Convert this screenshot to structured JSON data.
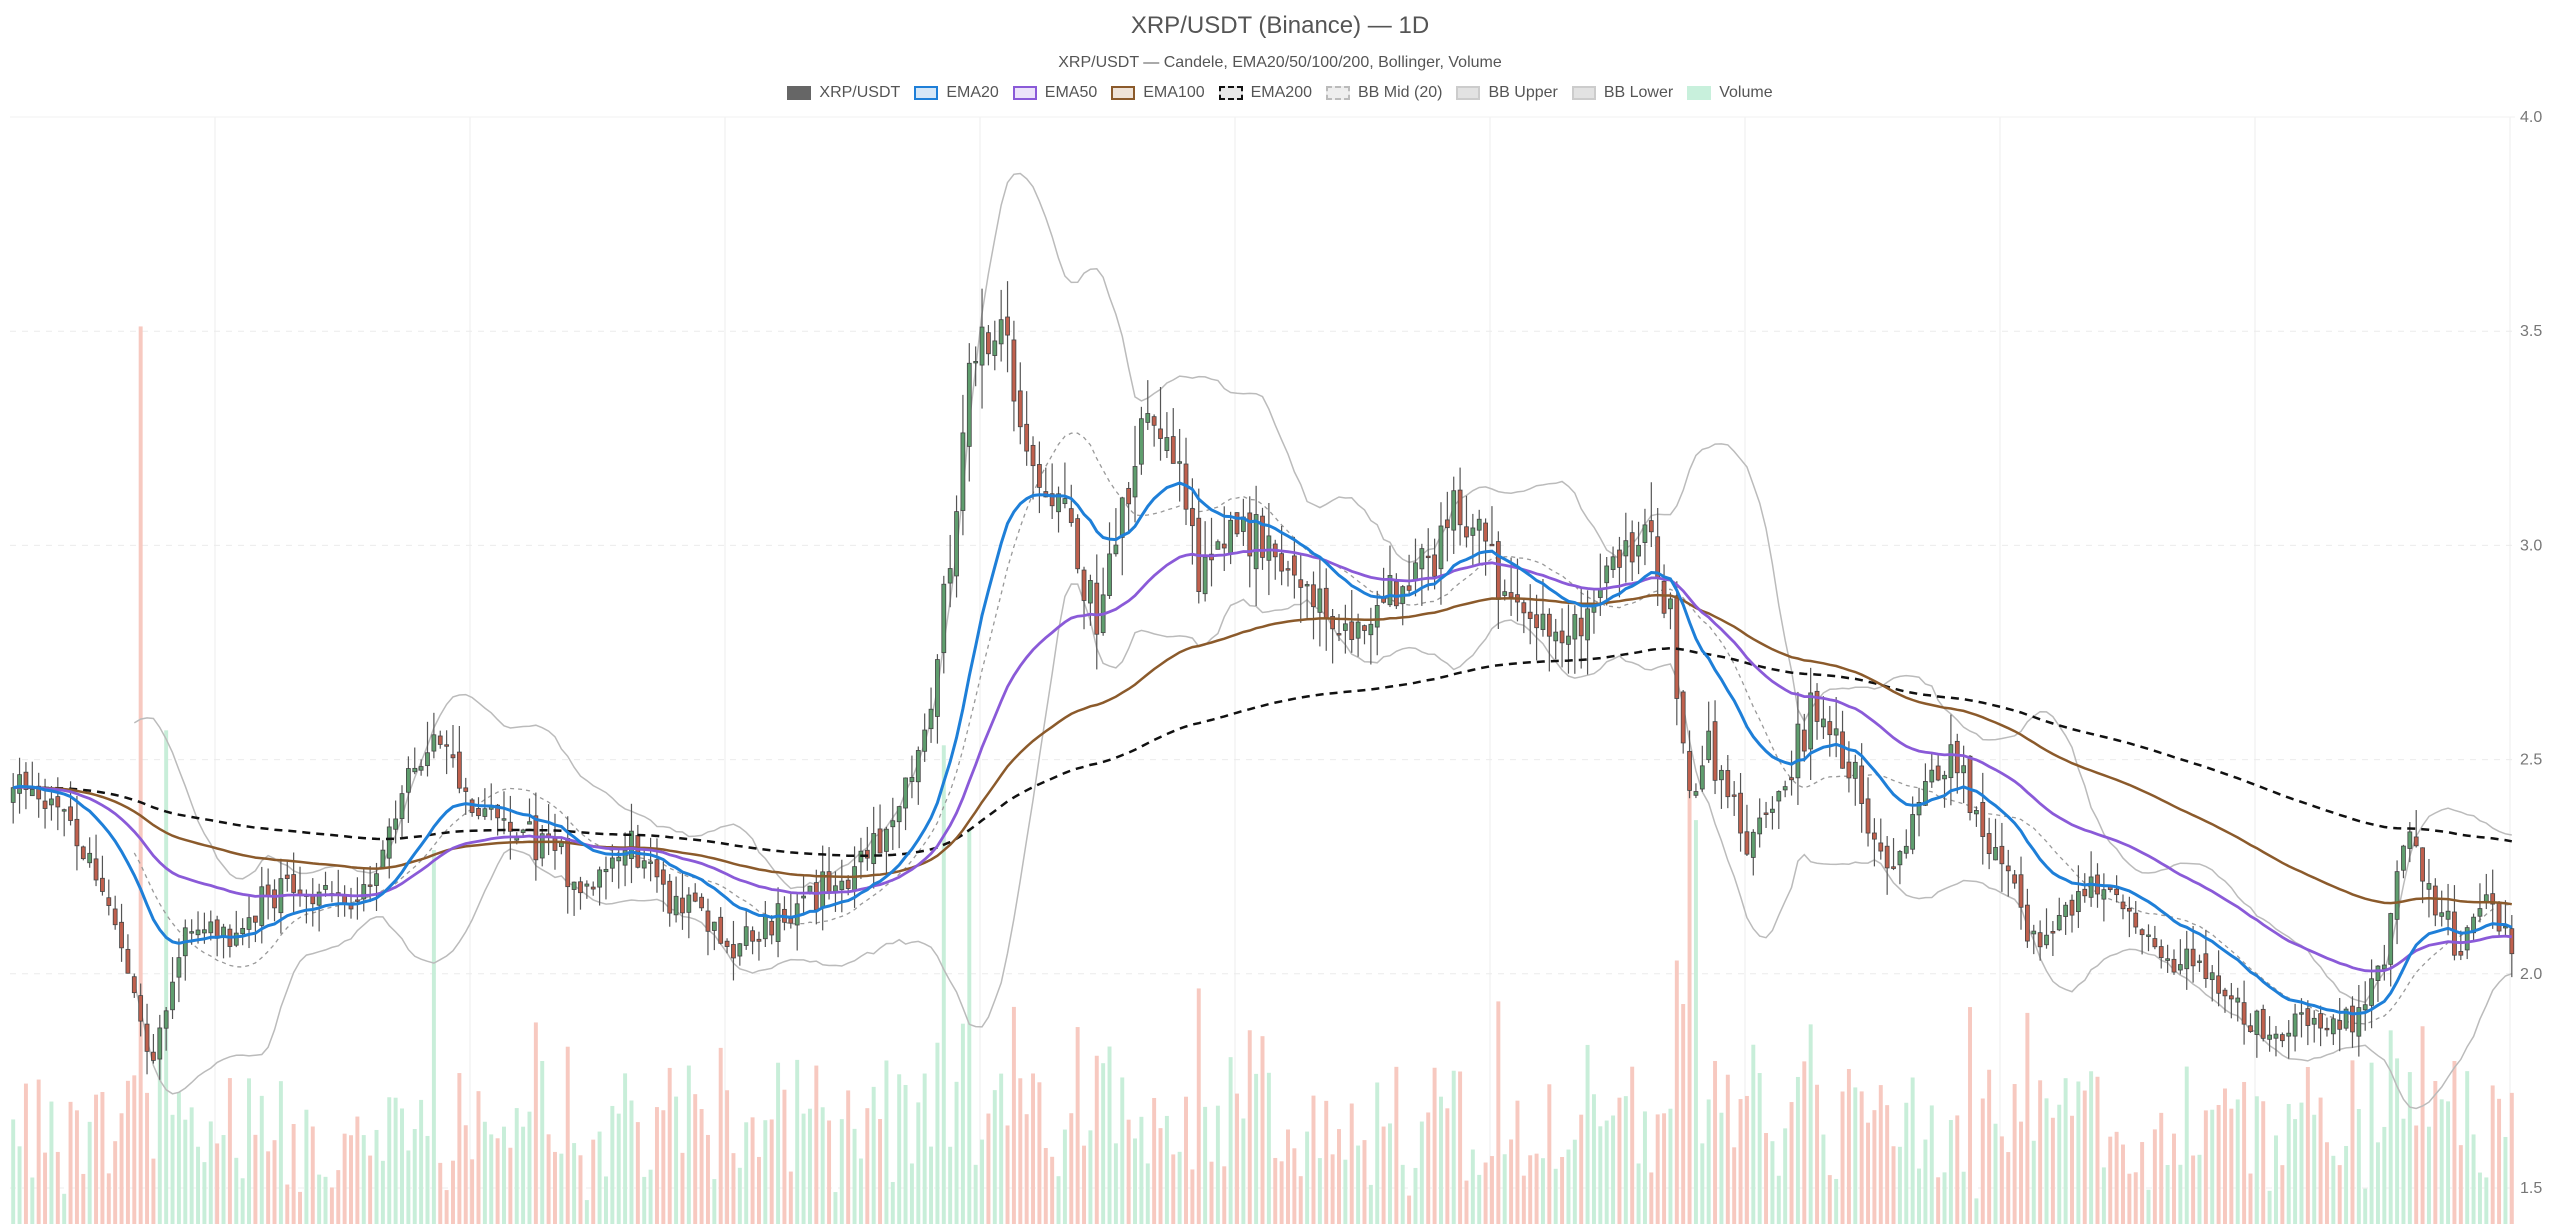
{
  "chart_data": {
    "type": "candlestick",
    "title": "XRP/USDT (Binance) — 1D",
    "subtitle": "XRP/USDT — Candele, EMA20/50/100/200, Bollinger, Volume",
    "ylim": [
      1.5,
      4.0
    ],
    "y_ticks": [
      "4.0",
      "3.5",
      "3.0",
      "2.5",
      "2.0",
      "1.5"
    ],
    "y_tick_values": [
      4.0,
      3.5,
      3.0,
      2.5,
      2.0,
      1.5
    ],
    "grid": true,
    "legend_position": "top-center",
    "legend": [
      {
        "name": "XRP/USDT",
        "fill": "#666666",
        "stroke": "#666666",
        "dashed": false
      },
      {
        "name": "EMA20",
        "fill": "#d6e7f7",
        "stroke": "#1e7fd8",
        "dashed": false
      },
      {
        "name": "EMA50",
        "fill": "#ece3fa",
        "stroke": "#8a5ad8",
        "dashed": false
      },
      {
        "name": "EMA100",
        "fill": "#efe3d8",
        "stroke": "#8b5a2b",
        "dashed": false
      },
      {
        "name": "EMA200",
        "fill": "#e8e8e8",
        "stroke": "#111111",
        "dashed": true
      },
      {
        "name": "BB Mid (20)",
        "fill": "#eeeeee",
        "stroke": "#bbbbbb",
        "dashed": true
      },
      {
        "name": "BB Upper",
        "fill": "#e2e2e2",
        "stroke": "#cccccc",
        "dashed": false
      },
      {
        "name": "BB Lower",
        "fill": "#e2e2e2",
        "stroke": "#cccccc",
        "dashed": false
      },
      {
        "name": "Volume",
        "fill": "#c8f0dc",
        "stroke": "#c8f0dc",
        "dashed": false
      }
    ],
    "colors": {
      "up": "#5f9e6e",
      "down": "#c0604d",
      "vol_up": "#c8eed9",
      "vol_down": "#f7c9c0",
      "ema20": "#1e7fd8",
      "ema50": "#8a5ad8",
      "ema100": "#8b5a2b",
      "ema200": "#111111",
      "bb": "#bbbbbb",
      "grid": "#ececec"
    },
    "price_path": [
      [
        0,
        2.43
      ],
      [
        8,
        2.38
      ],
      [
        16,
        2.12
      ],
      [
        22,
        1.8
      ],
      [
        27,
        2.1
      ],
      [
        34,
        2.08
      ],
      [
        42,
        2.2
      ],
      [
        50,
        2.18
      ],
      [
        56,
        2.2
      ],
      [
        63,
        2.5
      ],
      [
        67,
        2.55
      ],
      [
        72,
        2.38
      ],
      [
        78,
        2.33
      ],
      [
        84,
        2.3
      ],
      [
        90,
        2.2
      ],
      [
        96,
        2.3
      ],
      [
        102,
        2.2
      ],
      [
        108,
        2.12
      ],
      [
        114,
        2.05
      ],
      [
        120,
        2.15
      ],
      [
        126,
        2.2
      ],
      [
        132,
        2.25
      ],
      [
        138,
        2.35
      ],
      [
        144,
        2.6
      ],
      [
        147,
        2.95
      ],
      [
        150,
        3.45
      ],
      [
        155,
        3.5
      ],
      [
        160,
        3.15
      ],
      [
        165,
        3.12
      ],
      [
        170,
        2.8
      ],
      [
        174,
        3.1
      ],
      [
        178,
        3.3
      ],
      [
        182,
        3.2
      ],
      [
        186,
        2.95
      ],
      [
        192,
        3.05
      ],
      [
        198,
        2.95
      ],
      [
        203,
        2.88
      ],
      [
        208,
        2.78
      ],
      [
        214,
        2.85
      ],
      [
        220,
        2.92
      ],
      [
        226,
        3.08
      ],
      [
        232,
        2.95
      ],
      [
        238,
        2.85
      ],
      [
        244,
        2.78
      ],
      [
        250,
        2.95
      ],
      [
        256,
        3.02
      ],
      [
        260,
        2.88
      ],
      [
        263,
        2.4
      ],
      [
        266,
        2.55
      ],
      [
        272,
        2.3
      ],
      [
        278,
        2.45
      ],
      [
        282,
        2.6
      ],
      [
        286,
        2.55
      ],
      [
        290,
        2.42
      ],
      [
        294,
        2.25
      ],
      [
        300,
        2.4
      ],
      [
        304,
        2.52
      ],
      [
        308,
        2.35
      ],
      [
        314,
        2.2
      ],
      [
        318,
        2.05
      ],
      [
        324,
        2.2
      ],
      [
        330,
        2.18
      ],
      [
        336,
        2.05
      ],
      [
        342,
        2.02
      ],
      [
        348,
        1.95
      ],
      [
        354,
        1.85
      ],
      [
        358,
        1.88
      ],
      [
        364,
        1.88
      ],
      [
        368,
        1.9
      ],
      [
        372,
        2.05
      ],
      [
        376,
        2.35
      ],
      [
        380,
        2.15
      ],
      [
        384,
        2.08
      ],
      [
        388,
        2.18
      ],
      [
        392,
        2.07
      ]
    ],
    "volume_spikes": [
      [
        20,
        3.0
      ],
      [
        24,
        1.65
      ],
      [
        66,
        1.25
      ],
      [
        146,
        1.6
      ],
      [
        150,
        1.32
      ],
      [
        263,
        1.55
      ],
      [
        264,
        1.35
      ]
    ],
    "volume_ylim": [
      0,
      3.7
    ]
  }
}
